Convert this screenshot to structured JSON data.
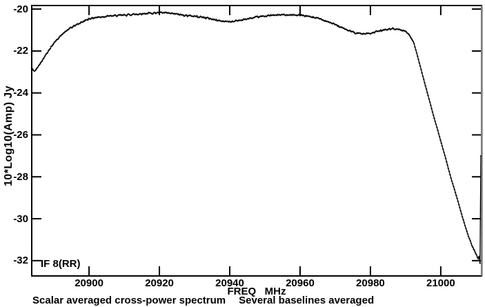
{
  "chart_data": {
    "type": "line",
    "xlabel": "FREQ   MHz",
    "ylabel": "10*Log10(Amp) Jy",
    "if_band_label": "IF 8(RR)",
    "caption_left": "Scalar averaged cross-power spectrum",
    "caption_right": "Several baselines averaged",
    "x_ticks": [
      20900,
      20920,
      20940,
      20960,
      20980,
      21000
    ],
    "y_ticks": [
      -20,
      -22,
      -24,
      -26,
      -28,
      -30,
      -32
    ],
    "xlim": [
      20883.7,
      21011.6
    ],
    "ylim": [
      -32.73,
      -19.83
    ],
    "grid": false,
    "legend": "none",
    "line_color": "#000000",
    "frame_color": "#000000",
    "right_edge_color": "#8a8a8a",
    "n_channels": 512,
    "noise_db_flat": 0.048,
    "noise_db_steep": 0.012,
    "series": [
      {
        "name": "scalar averaged cross-power spectrum, several baselines, IF 8 RR",
        "control_points": [
          [
            20883.7,
            -22.85
          ],
          [
            20884.6,
            -22.97
          ],
          [
            20886,
            -22.62
          ],
          [
            20888,
            -22.1
          ],
          [
            20890,
            -21.62
          ],
          [
            20892,
            -21.26
          ],
          [
            20894,
            -20.98
          ],
          [
            20896,
            -20.78
          ],
          [
            20898,
            -20.62
          ],
          [
            20900,
            -20.46
          ],
          [
            20902,
            -20.4
          ],
          [
            20904,
            -20.36
          ],
          [
            20906,
            -20.33
          ],
          [
            20908,
            -20.31
          ],
          [
            20910,
            -20.29
          ],
          [
            20912,
            -20.26
          ],
          [
            20914,
            -20.24
          ],
          [
            20916,
            -20.21
          ],
          [
            20918,
            -20.19
          ],
          [
            20920,
            -20.17
          ],
          [
            20922,
            -20.19
          ],
          [
            20924,
            -20.22
          ],
          [
            20926,
            -20.27
          ],
          [
            20928,
            -20.31
          ],
          [
            20930,
            -20.34
          ],
          [
            20932,
            -20.38
          ],
          [
            20934,
            -20.44
          ],
          [
            20936,
            -20.52
          ],
          [
            20938,
            -20.58
          ],
          [
            20940,
            -20.6
          ],
          [
            20942,
            -20.56
          ],
          [
            20944,
            -20.5
          ],
          [
            20946,
            -20.44
          ],
          [
            20948,
            -20.38
          ],
          [
            20950,
            -20.33
          ],
          [
            20952,
            -20.3
          ],
          [
            20954,
            -20.28
          ],
          [
            20956,
            -20.27
          ],
          [
            20958,
            -20.28
          ],
          [
            20960,
            -20.3
          ],
          [
            20962,
            -20.34
          ],
          [
            20964,
            -20.4
          ],
          [
            20966,
            -20.48
          ],
          [
            20968,
            -20.6
          ],
          [
            20970,
            -20.74
          ],
          [
            20972,
            -20.9
          ],
          [
            20974,
            -21.04
          ],
          [
            20976,
            -21.14
          ],
          [
            20978,
            -21.18
          ],
          [
            20980,
            -21.15
          ],
          [
            20982,
            -21.07
          ],
          [
            20984,
            -20.99
          ],
          [
            20986,
            -20.94
          ],
          [
            20988,
            -20.97
          ],
          [
            20990,
            -21.05
          ],
          [
            20991.3,
            -21.3
          ],
          [
            20992.3,
            -21.6
          ],
          [
            20993.0,
            -22.0
          ],
          [
            20994.6,
            -23.0
          ],
          [
            20996.2,
            -24.0
          ],
          [
            20997.8,
            -25.0
          ],
          [
            20999.5,
            -26.0
          ],
          [
            21001.2,
            -27.0
          ],
          [
            21002.8,
            -28.0
          ],
          [
            21004.6,
            -29.0
          ],
          [
            21006.3,
            -30.0
          ],
          [
            21007.6,
            -30.7
          ],
          [
            21008.8,
            -31.25
          ],
          [
            21009.8,
            -31.6
          ],
          [
            21010.6,
            -31.9
          ],
          [
            21010.9,
            -31.8
          ],
          [
            21011.1,
            -32.1
          ],
          [
            21011.25,
            -32.15
          ],
          [
            21011.4,
            -27.0
          ]
        ]
      }
    ]
  }
}
